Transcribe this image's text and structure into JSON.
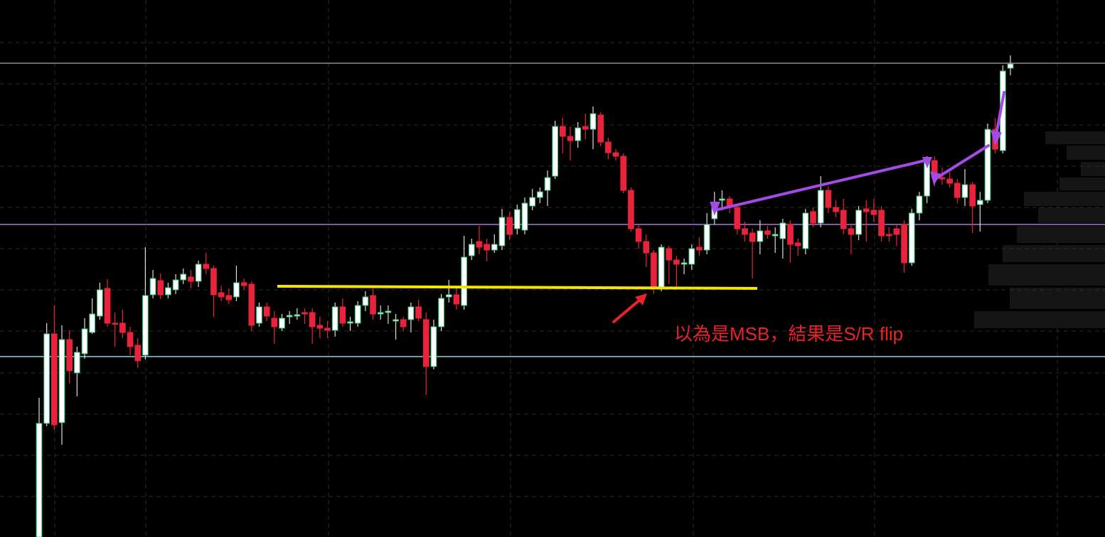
{
  "chart_data": {
    "type": "candlestick",
    "annotation": "以為是MSB，結果是S/R flip",
    "up_color": "#ffffff",
    "up_border": "#26c06a",
    "down_color": "#e8233b",
    "ylim": [
      0,
      756
    ],
    "yticks": [
      57,
      115,
      173,
      231,
      290,
      348,
      406,
      464,
      522,
      580,
      638,
      696
    ],
    "grid": true,
    "hlines": [
      {
        "value": 667,
        "color": "#8a8a8a"
      },
      {
        "value": 440,
        "color": "#b070e0"
      },
      {
        "value": 254,
        "color": "#7fd6e8"
      }
    ],
    "open": [
      0,
      160,
      286,
      161,
      278,
      231,
      258,
      288,
      311,
      350,
      301,
      301,
      288,
      270,
      256,
      341,
      361,
      341,
      348,
      362,
      366,
      360,
      384,
      378,
      344,
      340,
      338,
      358,
      356,
      301,
      324,
      308,
      294,
      310,
      311,
      316,
      316,
      298,
      294,
      291,
      324,
      301,
      301,
      326,
      340,
      314,
      316,
      304,
      306,
      306,
      324,
      306,
      240,
      296,
      338,
      341,
      326,
      396,
      416,
      412,
      404,
      410,
      450,
      434,
      432,
      466,
      478,
      488,
      508,
      578,
      564,
      558,
      578,
      574,
      594,
      556,
      541,
      536,
      488,
      434,
      416,
      400,
      351,
      406,
      390,
      384,
      384,
      408,
      404,
      448,
      474,
      476,
      464,
      434,
      428,
      416,
      431,
      424,
      420,
      440,
      414,
      406,
      458,
      442,
      488,
      464,
      460,
      434,
      426,
      462,
      460,
      460,
      426,
      434,
      440,
      386,
      456,
      480,
      530,
      506,
      504,
      498,
      478,
      496,
      468,
      474,
      574,
      544,
      660
    ],
    "high": [
      196,
      301,
      326,
      298,
      291,
      268,
      308,
      336,
      358,
      363,
      316,
      320,
      296,
      280,
      408,
      376,
      371,
      358,
      370,
      378,
      376,
      389,
      400,
      382,
      354,
      350,
      382,
      364,
      360,
      330,
      330,
      318,
      314,
      318,
      322,
      322,
      322,
      310,
      304,
      330,
      336,
      310,
      332,
      346,
      350,
      326,
      326,
      314,
      310,
      330,
      334,
      316,
      306,
      342,
      362,
      350,
      424,
      420,
      438,
      420,
      426,
      462,
      458,
      468,
      478,
      490,
      492,
      516,
      586,
      590,
      578,
      584,
      596,
      606,
      598,
      562,
      546,
      540,
      492,
      440,
      426,
      404,
      412,
      410,
      396,
      392,
      412,
      422,
      456,
      486,
      488,
      480,
      468,
      444,
      434,
      446,
      438,
      436,
      448,
      446,
      420,
      462,
      464,
      508,
      494,
      474,
      476,
      440,
      466,
      474,
      476,
      466,
      436,
      440,
      446,
      462,
      486,
      536,
      536,
      520,
      514,
      504,
      518,
      500,
      486,
      582,
      590,
      664,
      678
    ],
    "low": [
      0,
      156,
      151,
      130,
      216,
      198,
      251,
      286,
      306,
      296,
      268,
      280,
      256,
      238,
      250,
      336,
      335,
      336,
      342,
      356,
      350,
      352,
      370,
      310,
      332,
      328,
      332,
      348,
      290,
      296,
      304,
      272,
      290,
      300,
      306,
      300,
      272,
      280,
      280,
      282,
      296,
      290,
      296,
      318,
      306,
      306,
      300,
      278,
      290,
      288,
      304,
      200,
      236,
      290,
      330,
      320,
      320,
      390,
      398,
      388,
      400,
      404,
      418,
      426,
      426,
      460,
      470,
      466,
      504,
      540,
      530,
      548,
      560,
      546,
      550,
      532,
      530,
      484,
      430,
      406,
      380,
      342,
      346,
      356,
      352,
      370,
      376,
      396,
      398,
      440,
      460,
      456,
      426,
      416,
      364,
      398,
      420,
      400,
      392,
      386,
      396,
      398,
      436,
      436,
      456,
      450,
      426,
      398,
      418,
      416,
      444,
      416,
      416,
      410,
      372,
      382,
      446,
      470,
      494,
      496,
      492,
      470,
      466,
      428,
      430,
      470,
      540,
      540,
      650
    ],
    "close": [
      160,
      286,
      158,
      278,
      234,
      260,
      293,
      314,
      348,
      301,
      300,
      288,
      268,
      248,
      340,
      364,
      341,
      351,
      362,
      370,
      360,
      384,
      378,
      341,
      338,
      334,
      358,
      354,
      298,
      324,
      311,
      296,
      308,
      312,
      313,
      314,
      296,
      294,
      291,
      324,
      301,
      303,
      326,
      338,
      314,
      316,
      318,
      306,
      296,
      324,
      308,
      240,
      296,
      336,
      341,
      328,
      394,
      412,
      408,
      404,
      412,
      450,
      426,
      461,
      470,
      478,
      486,
      506,
      578,
      564,
      558,
      576,
      574,
      596,
      556,
      541,
      536,
      488,
      434,
      416,
      400,
      351,
      408,
      390,
      384,
      386,
      406,
      404,
      440,
      468,
      476,
      464,
      434,
      426,
      416,
      431,
      426,
      426,
      442,
      412,
      410,
      456,
      442,
      488,
      464,
      458,
      434,
      426,
      460,
      458,
      454,
      424,
      424,
      426,
      386,
      456,
      480,
      530,
      506,
      504,
      498,
      478,
      496,
      466,
      474,
      574,
      546,
      656,
      666
    ]
  }
}
